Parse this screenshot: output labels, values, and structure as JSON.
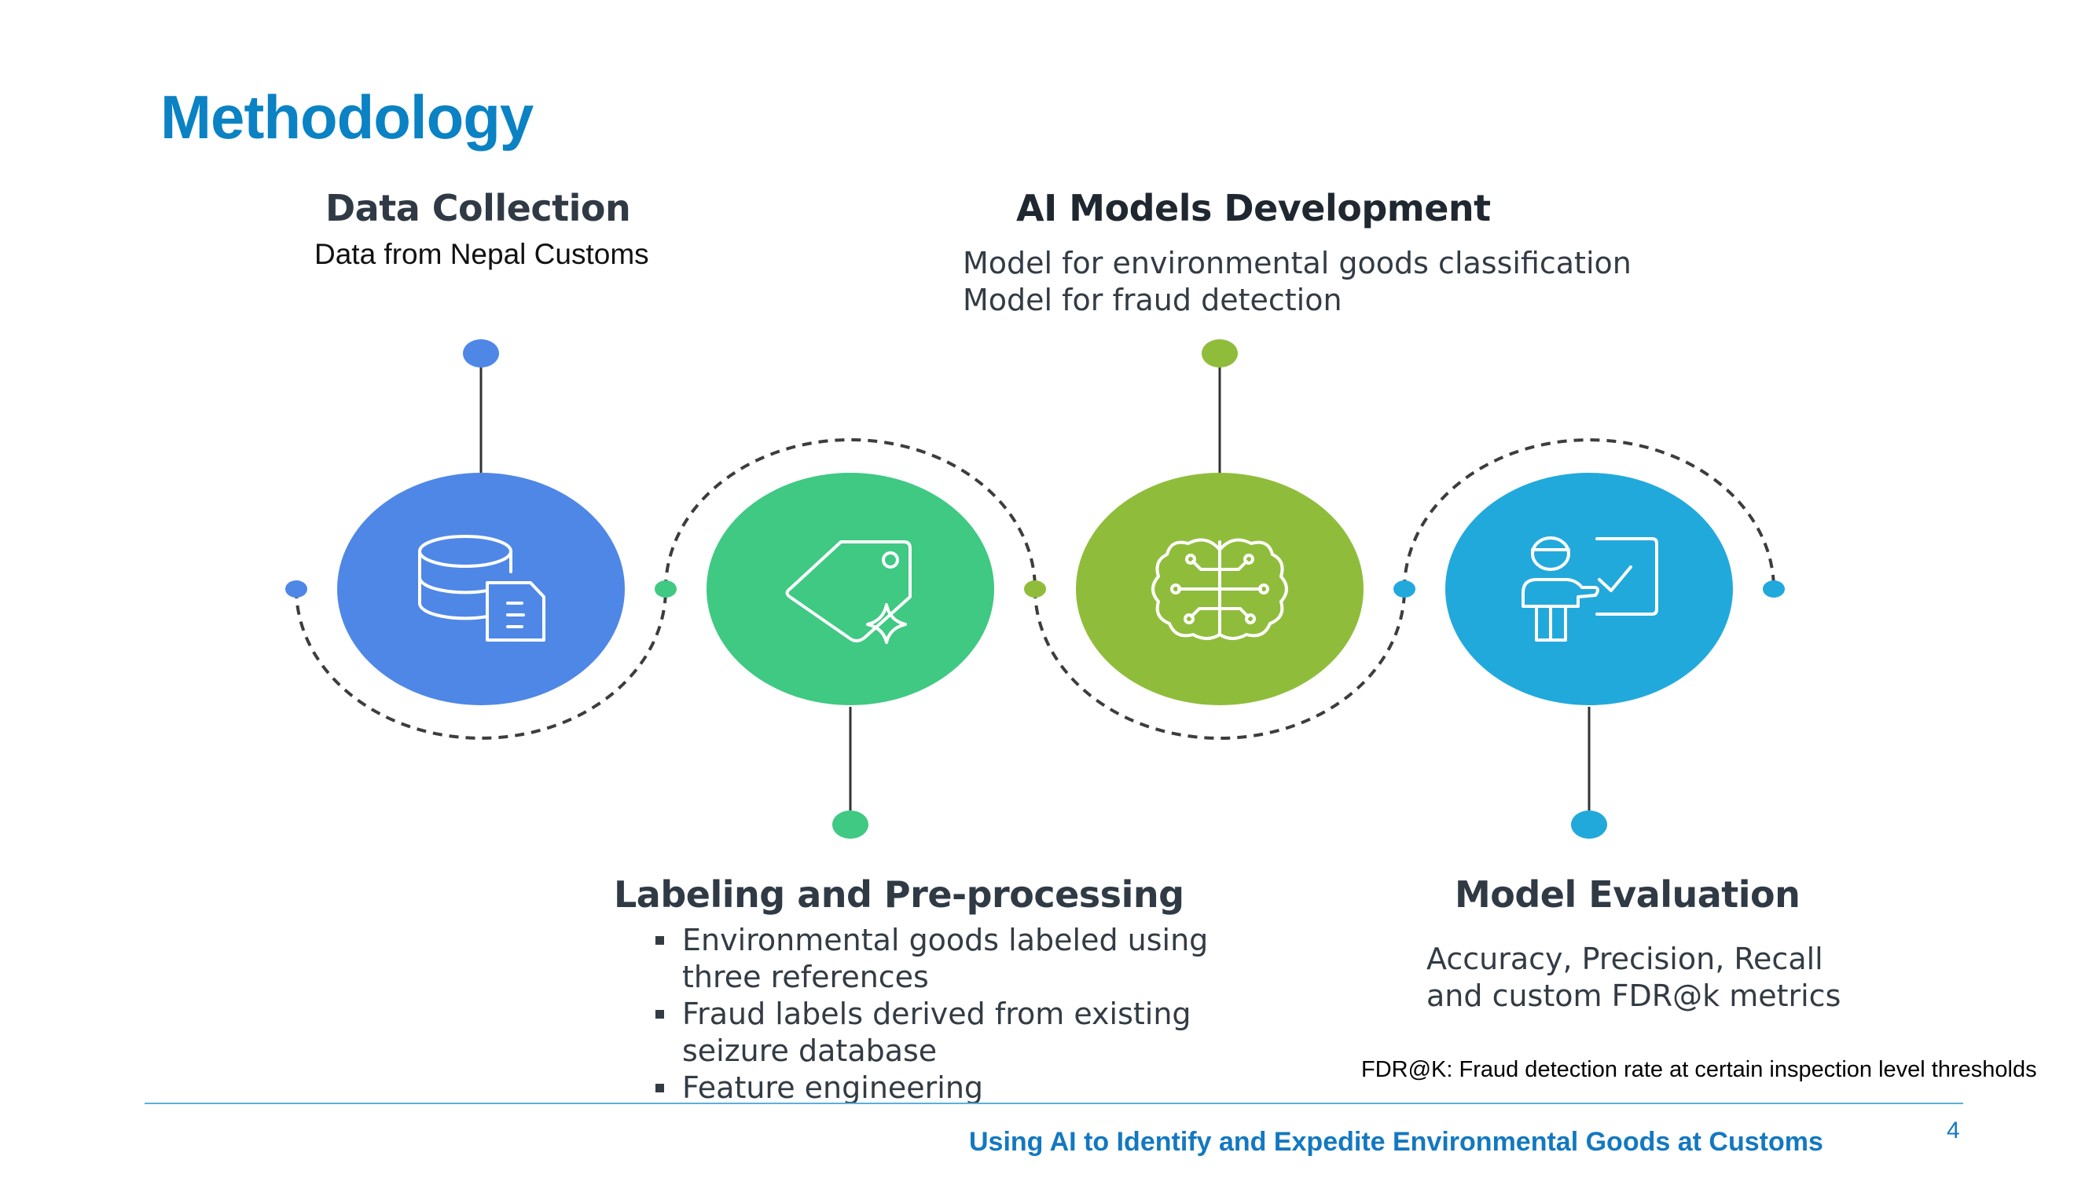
{
  "title": "Methodology",
  "steps": [
    {
      "heading": "Data Collection",
      "lines": [
        "Data from Nepal Customs"
      ],
      "color": "#4f87e6",
      "icon": "database-document-icon"
    },
    {
      "heading": "Labeling and Pre-processing",
      "bullets": [
        "Environmental goods labeled using three references",
        "Fraud labels derived from existing seizure database",
        "Feature engineering"
      ],
      "color": "#3fc983",
      "icon": "tag-sparkle-icon"
    },
    {
      "heading": "AI Models Development",
      "lines": [
        "Model for environmental goods classification",
        "Model for fraud detection"
      ],
      "color": "#8fbd3b",
      "icon": "brain-circuit-icon"
    },
    {
      "heading": "Model Evaluation",
      "lines": [
        "Accuracy, Precision, Recall and custom FDR@k metrics"
      ],
      "color": "#22a9dc",
      "icon": "presenter-check-icon"
    }
  ],
  "footnote": "FDR@K: Fraud detection rate at certain inspection level thresholds",
  "footer": "Using AI to Identify and Expedite Environmental Goods at Customs",
  "page_number": "4"
}
